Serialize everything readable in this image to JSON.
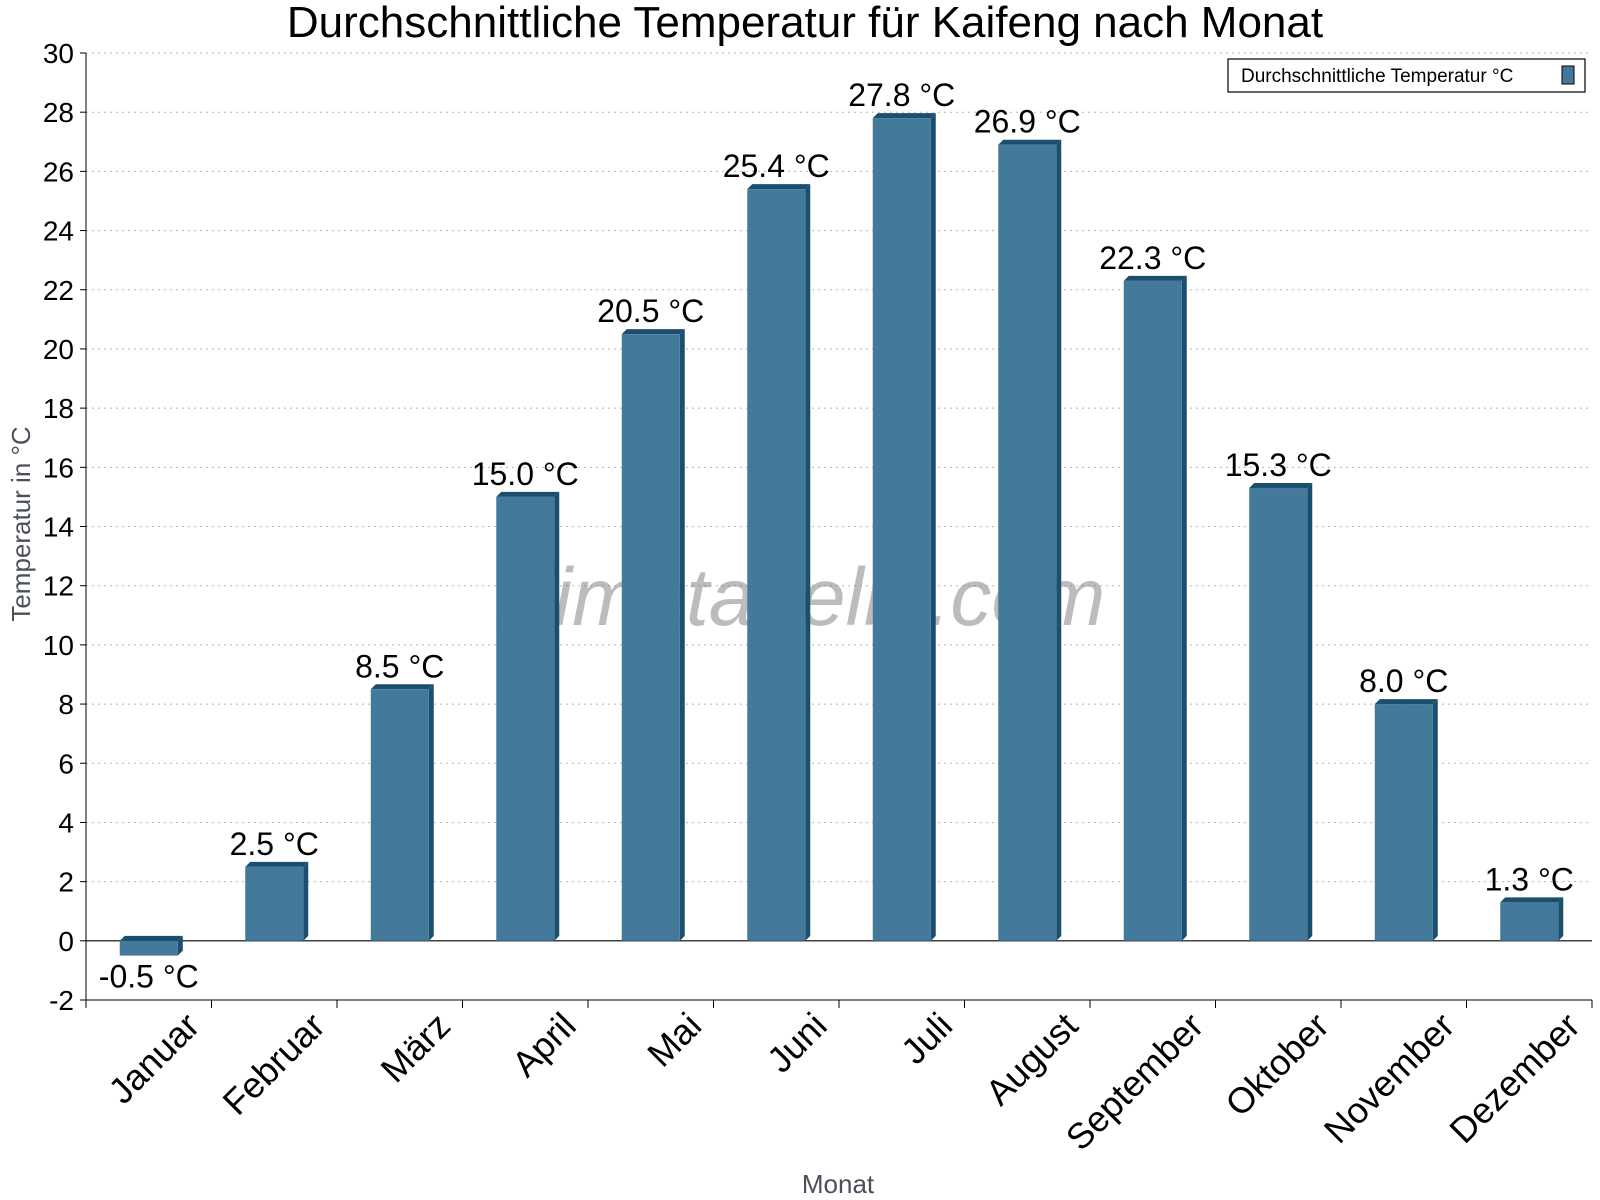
{
  "chart_data": {
    "type": "bar",
    "title": "Durchschnittliche Temperatur für Kaifeng nach Monat",
    "xlabel": "Monat",
    "ylabel": "Temperatur in °C",
    "ylim": [
      -2,
      30
    ],
    "ytick_step": 2,
    "grid": true,
    "legend_position": "top-right",
    "categories": [
      "Januar",
      "Februar",
      "März",
      "April",
      "Mai",
      "Juni",
      "Juli",
      "August",
      "September",
      "Oktober",
      "November",
      "Dezember"
    ],
    "series": [
      {
        "name": "Durchschnittliche Temperatur °C",
        "values": [
          -0.5,
          2.5,
          8.5,
          15.0,
          20.5,
          25.4,
          27.8,
          26.9,
          22.3,
          15.3,
          8.0,
          1.3
        ],
        "labels": [
          "-0.5 °C",
          "2.5 °C",
          "8.5 °C",
          "15.0 °C",
          "20.5 °C",
          "25.4 °C",
          "27.8 °C",
          "26.9 °C",
          "22.3 °C",
          "15.3 °C",
          "8.0 °C",
          "1.3 °C"
        ],
        "color": "#437a9c"
      }
    ],
    "colors": {
      "bar_front": "#437a9c",
      "bar_side": "#1c4e6e",
      "bar_top": "#1c4e6e",
      "grid": "#b5b5b5",
      "axis": "#000000"
    }
  },
  "watermark": "klimatabelle.com"
}
